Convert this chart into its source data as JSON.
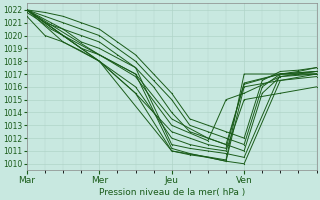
{
  "bg_color": "#c8e8e0",
  "grid_color": "#b0d4c8",
  "line_color": "#1a5c1a",
  "title": "Pression niveau de la mer( hPa )",
  "ylim": [
    1009.5,
    1022.5
  ],
  "yticks": [
    1010,
    1011,
    1012,
    1013,
    1014,
    1015,
    1016,
    1017,
    1018,
    1019,
    1020,
    1021,
    1022
  ],
  "xlim": [
    0,
    96
  ],
  "xtick_positions": [
    0,
    24,
    48,
    72
  ],
  "xtick_labels": [
    "Mar",
    "Mer",
    "Jeu",
    "Ven"
  ],
  "lines": [
    {
      "x": [
        0,
        4,
        8,
        12,
        18,
        24,
        36,
        48,
        54,
        60,
        66,
        72,
        84,
        96
      ],
      "y": [
        1022,
        1021.5,
        1021,
        1020.5,
        1019.5,
        1019,
        1017.5,
        1011.5,
        1011.2,
        1011,
        1010.8,
        1010.5,
        1017,
        1017
      ]
    },
    {
      "x": [
        0,
        4,
        8,
        12,
        18,
        24,
        36,
        48,
        54,
        60,
        66,
        72,
        84,
        96
      ],
      "y": [
        1021.8,
        1021.2,
        1020.5,
        1020,
        1019,
        1018.5,
        1017,
        1011.2,
        1010.8,
        1010.5,
        1010.2,
        1010,
        1016.5,
        1016.8
      ]
    },
    {
      "x": [
        0,
        6,
        12,
        18,
        24,
        36,
        48,
        54,
        60,
        66,
        72,
        84,
        96
      ],
      "y": [
        1022,
        1021,
        1020,
        1019,
        1018,
        1016,
        1012,
        1011.5,
        1011.2,
        1011,
        1015,
        1015.5,
        1016
      ]
    },
    {
      "x": [
        0,
        6,
        12,
        18,
        24,
        36,
        48,
        54,
        60,
        66,
        72,
        84,
        96
      ],
      "y": [
        1021.5,
        1020,
        1019.5,
        1018.8,
        1018,
        1015.5,
        1011,
        1010.7,
        1010.5,
        1010.2,
        1016,
        1016.5,
        1017
      ]
    },
    {
      "x": [
        0,
        12,
        24,
        36,
        48,
        60,
        66,
        72,
        84,
        96
      ],
      "y": [
        1022,
        1020,
        1018.5,
        1017,
        1013.5,
        1012,
        1011.5,
        1016.2,
        1017,
        1017.2
      ]
    },
    {
      "x": [
        0,
        12,
        24,
        36,
        48,
        54,
        60,
        66,
        72,
        84,
        96
      ],
      "y": [
        1022,
        1019.5,
        1018,
        1015.5,
        1012.5,
        1012,
        1011.5,
        1011.2,
        1016.3,
        1017,
        1017.2
      ]
    },
    {
      "x": [
        0,
        24,
        48,
        66,
        72,
        96
      ],
      "y": [
        1022,
        1018,
        1011,
        1010.3,
        1017,
        1017
      ]
    },
    {
      "x": [
        0,
        24,
        36,
        48,
        60,
        66,
        72,
        84,
        96
      ],
      "y": [
        1022,
        1018.5,
        1016.8,
        1013,
        1011.8,
        1015,
        1015.5,
        1016.8,
        1017
      ]
    },
    {
      "x": [
        0,
        6,
        12,
        18,
        24,
        30,
        36,
        42,
        48,
        54,
        60,
        66,
        72,
        78,
        84,
        90,
        96
      ],
      "y": [
        1022,
        1021,
        1020.5,
        1020,
        1019.5,
        1018.5,
        1017.5,
        1016,
        1014,
        1012.5,
        1012,
        1011.5,
        1011,
        1015.5,
        1016.8,
        1017,
        1017.2
      ]
    },
    {
      "x": [
        0,
        6,
        12,
        18,
        24,
        30,
        36,
        42,
        48,
        54,
        60,
        66,
        72,
        78,
        84,
        90,
        96
      ],
      "y": [
        1022,
        1021.5,
        1021,
        1020.5,
        1020,
        1019,
        1018,
        1016.5,
        1015,
        1013,
        1012.5,
        1012,
        1011.5,
        1016,
        1017,
        1017.2,
        1017.5
      ]
    },
    {
      "x": [
        0,
        6,
        12,
        18,
        24,
        30,
        36,
        42,
        48,
        54,
        60,
        66,
        72,
        78,
        84,
        90,
        96
      ],
      "y": [
        1022,
        1021.8,
        1021.5,
        1021,
        1020.5,
        1019.5,
        1018.5,
        1017,
        1015.5,
        1013.5,
        1013,
        1012.5,
        1012,
        1016.5,
        1017.2,
        1017.3,
        1017.5
      ]
    }
  ]
}
